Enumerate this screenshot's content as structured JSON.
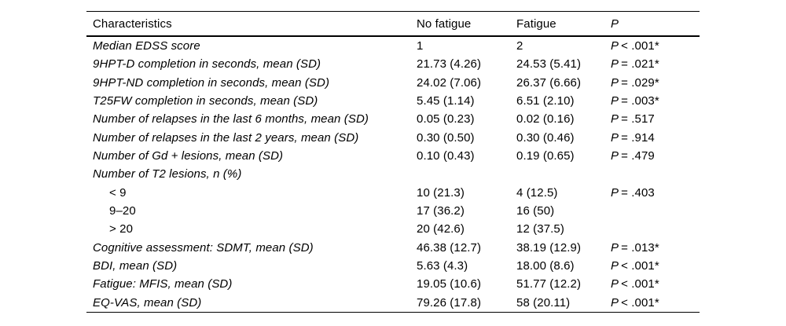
{
  "table": {
    "columns": [
      {
        "label": "Characteristics"
      },
      {
        "label": "No fatigue"
      },
      {
        "label": "Fatigue"
      },
      {
        "label": "P"
      }
    ],
    "p_prefix": "P",
    "rows": [
      {
        "label": "Median EDSS score",
        "indent": false,
        "plain": false,
        "no_fatigue": "1",
        "fatigue": "2",
        "p": "< .001*"
      },
      {
        "label": "9HPT-D completion in seconds, mean (SD)",
        "indent": false,
        "plain": false,
        "no_fatigue": "21.73 (4.26)",
        "fatigue": "24.53 (5.41)",
        "p": "= .021*"
      },
      {
        "label": "9HPT-ND completion in seconds, mean (SD)",
        "indent": false,
        "plain": false,
        "no_fatigue": "24.02 (7.06)",
        "fatigue": "26.37 (6.66)",
        "p": "= .029*"
      },
      {
        "label": "T25FW completion in seconds, mean (SD)",
        "indent": false,
        "plain": false,
        "no_fatigue": "5.45 (1.14)",
        "fatigue": "6.51 (2.10)",
        "p": "= .003*"
      },
      {
        "label": "Number of relapses in the last 6 months, mean (SD)",
        "indent": false,
        "plain": false,
        "no_fatigue": "0.05 (0.23)",
        "fatigue": "0.02 (0.16)",
        "p": "= .517"
      },
      {
        "label": "Number of relapses in the last 2 years, mean (SD)",
        "indent": false,
        "plain": false,
        "no_fatigue": "0.30 (0.50)",
        "fatigue": "0.30 (0.46)",
        "p": "= .914"
      },
      {
        "label": "Number of Gd + lesions, mean (SD)",
        "indent": false,
        "plain": false,
        "no_fatigue": "0.10 (0.43)",
        "fatigue": "0.19 (0.65)",
        "p": "= .479"
      },
      {
        "label": "Number of T2 lesions, n (%)",
        "indent": false,
        "plain": false,
        "no_fatigue": "",
        "fatigue": "",
        "p": ""
      },
      {
        "label": "< 9",
        "indent": true,
        "plain": true,
        "no_fatigue": "10 (21.3)",
        "fatigue": "4 (12.5)",
        "p": "= .403"
      },
      {
        "label": "9–20",
        "indent": true,
        "plain": true,
        "no_fatigue": "17 (36.2)",
        "fatigue": "16 (50)",
        "p": ""
      },
      {
        "label": "> 20",
        "indent": true,
        "plain": true,
        "no_fatigue": "20 (42.6)",
        "fatigue": "12 (37.5)",
        "p": ""
      },
      {
        "label": "Cognitive assessment: SDMT, mean (SD)",
        "indent": false,
        "plain": false,
        "no_fatigue": "46.38 (12.7)",
        "fatigue": "38.19 (12.9)",
        "p": "= .013*"
      },
      {
        "label": "BDI, mean (SD)",
        "indent": false,
        "plain": false,
        "no_fatigue": "5.63 (4.3)",
        "fatigue": "18.00 (8.6)",
        "p": "< .001*"
      },
      {
        "label": "Fatigue: MFIS, mean (SD)",
        "indent": false,
        "plain": false,
        "no_fatigue": "19.05 (10.6)",
        "fatigue": "51.77 (12.2)",
        "p": "< .001*"
      },
      {
        "label": "EQ-VAS, mean (SD)",
        "indent": false,
        "plain": false,
        "no_fatigue": "79.26 (17.8)",
        "fatigue": "58 (20.11)",
        "p": "< .001*"
      }
    ]
  }
}
